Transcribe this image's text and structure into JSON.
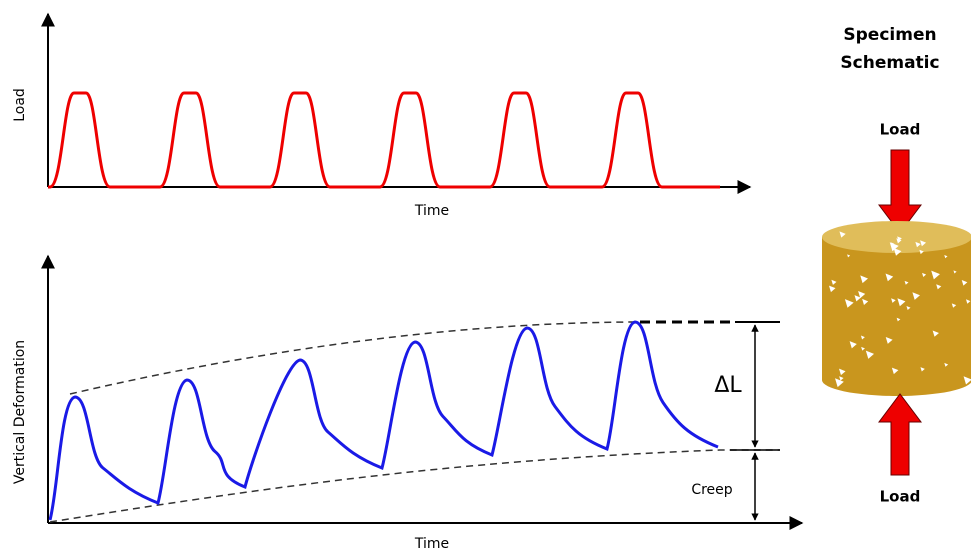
{
  "top_plot": {
    "y_label": "Load",
    "x_label": "Time"
  },
  "bottom_plot": {
    "y_label": "Vertical Deformation",
    "x_label": "Time",
    "delta_label": "ΔL",
    "creep_label": "Creep"
  },
  "schematic": {
    "title_lines": [
      "Specimen",
      "Schematic"
    ],
    "top_label": "Load",
    "bottom_label": "Load"
  }
}
